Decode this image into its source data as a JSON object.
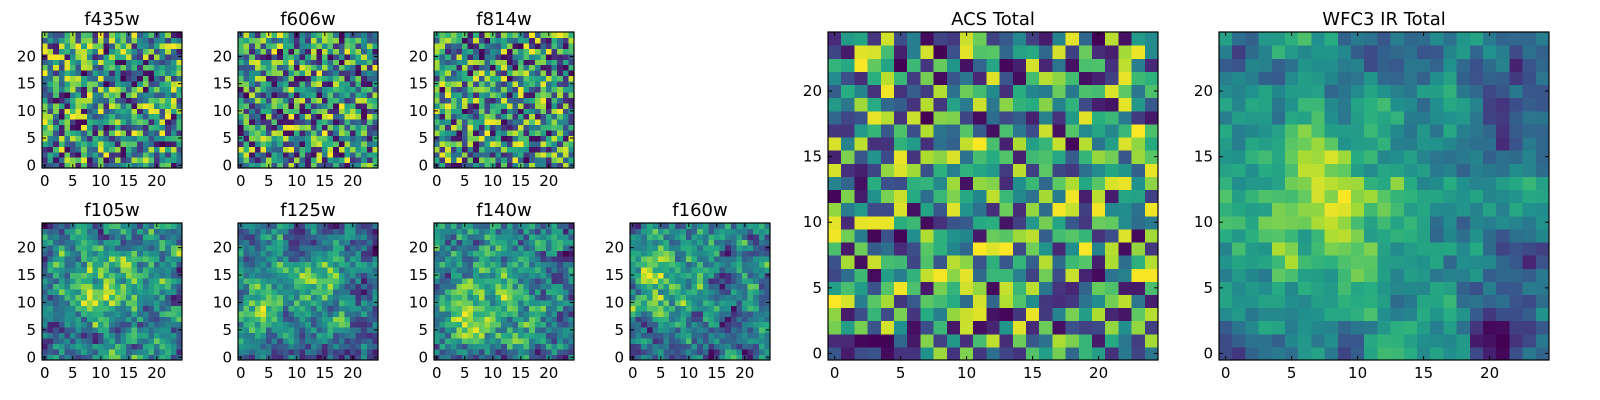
{
  "chart_data": [
    {
      "type": "heatmap",
      "title": "f435w",
      "xlim": [
        0,
        24
      ],
      "ylim": [
        0,
        24
      ],
      "xticks": [
        "0",
        "5",
        "10",
        "15",
        "20"
      ],
      "yticks": [
        "0",
        "5",
        "10",
        "15",
        "20"
      ],
      "colormap": "viridis",
      "seed": 11,
      "blobs": [],
      "smooth": 0
    },
    {
      "type": "heatmap",
      "title": "f606w",
      "xlim": [
        0,
        24
      ],
      "ylim": [
        0,
        24
      ],
      "xticks": [
        "0",
        "5",
        "10",
        "15",
        "20"
      ],
      "yticks": [
        "0",
        "5",
        "10",
        "15",
        "20"
      ],
      "colormap": "viridis",
      "seed": 23,
      "blobs": [],
      "smooth": 0
    },
    {
      "type": "heatmap",
      "title": "f814w",
      "xlim": [
        0,
        24
      ],
      "ylim": [
        0,
        24
      ],
      "xticks": [
        "0",
        "5",
        "10",
        "15",
        "20"
      ],
      "yticks": [
        "0",
        "5",
        "10",
        "15",
        "20"
      ],
      "colormap": "viridis",
      "seed": 37,
      "blobs": [],
      "smooth": 0
    },
    {
      "type": "heatmap",
      "title": "f105w",
      "xlim": [
        0,
        24
      ],
      "ylim": [
        0,
        24
      ],
      "xticks": [
        "0",
        "5",
        "10",
        "15",
        "20"
      ],
      "yticks": [
        "0",
        "5",
        "10",
        "15",
        "20"
      ],
      "colormap": "viridis",
      "seed": 41,
      "blobs": [
        [
          11,
          13,
          5,
          0.35
        ]
      ],
      "smooth": 1
    },
    {
      "type": "heatmap",
      "title": "f125w",
      "xlim": [
        0,
        24
      ],
      "ylim": [
        0,
        24
      ],
      "xticks": [
        "0",
        "5",
        "10",
        "15",
        "20"
      ],
      "yticks": [
        "0",
        "5",
        "10",
        "15",
        "20"
      ],
      "colormap": "viridis",
      "seed": 53,
      "blobs": [
        [
          14,
          14,
          4,
          0.3
        ],
        [
          3,
          9,
          3,
          0.25
        ]
      ],
      "smooth": 1
    },
    {
      "type": "heatmap",
      "title": "f140w",
      "xlim": [
        0,
        24
      ],
      "ylim": [
        0,
        24
      ],
      "xticks": [
        "0",
        "5",
        "10",
        "15",
        "20"
      ],
      "yticks": [
        "0",
        "5",
        "10",
        "15",
        "20"
      ],
      "colormap": "viridis",
      "seed": 67,
      "blobs": [
        [
          8,
          11,
          7,
          0.3
        ]
      ],
      "smooth": 1
    },
    {
      "type": "heatmap",
      "title": "f160w",
      "xlim": [
        0,
        24
      ],
      "ylim": [
        0,
        24
      ],
      "xticks": [
        "0",
        "5",
        "10",
        "15",
        "20"
      ],
      "yticks": [
        "0",
        "5",
        "10",
        "15",
        "20"
      ],
      "colormap": "viridis",
      "seed": 79,
      "blobs": [
        [
          5,
          14,
          5,
          0.35
        ]
      ],
      "smooth": 1
    },
    {
      "type": "heatmap",
      "title": "ACS Total",
      "xlim": [
        0,
        24
      ],
      "ylim": [
        0,
        24
      ],
      "xticks": [
        "0",
        "5",
        "10",
        "15",
        "20"
      ],
      "yticks": [
        "0",
        "5",
        "10",
        "15",
        "20"
      ],
      "colormap": "viridis",
      "seed": 97,
      "blobs": [],
      "smooth": 0
    },
    {
      "type": "heatmap",
      "title": "WFC3 IR Total",
      "xlim": [
        0,
        24
      ],
      "ylim": [
        0,
        24
      ],
      "xticks": [
        "0",
        "5",
        "10",
        "15",
        "20"
      ],
      "yticks": [
        "0",
        "5",
        "10",
        "15",
        "20"
      ],
      "colormap": "viridis",
      "seed": 131,
      "blobs": [
        [
          9,
          11,
          6,
          0.4
        ]
      ],
      "smooth": 2
    }
  ]
}
